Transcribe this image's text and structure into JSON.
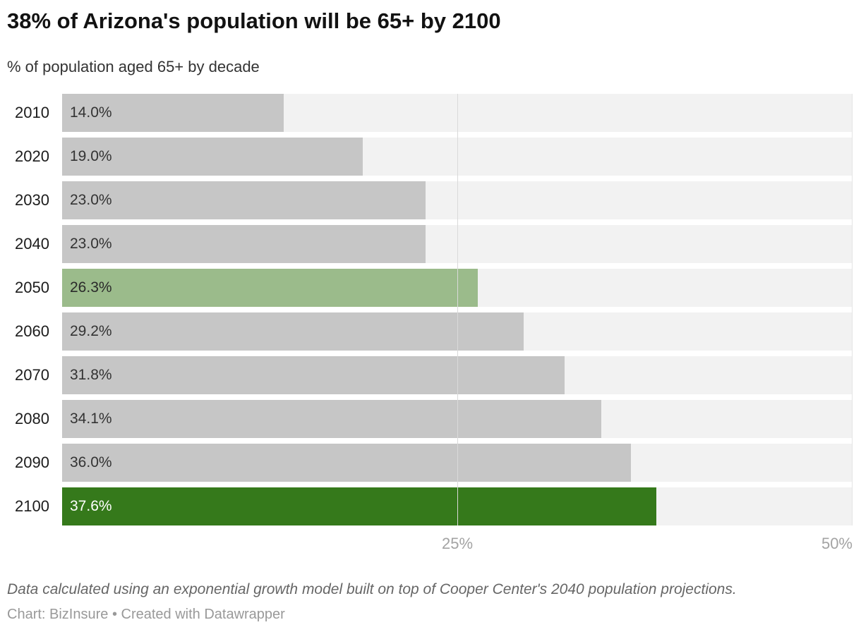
{
  "header": {
    "title": "38% of Arizona's population will be 65+ by 2100",
    "subtitle": "% of population aged 65+ by decade"
  },
  "chart_data": {
    "type": "bar",
    "orientation": "horizontal",
    "title": "38% of Arizona's population will be 65+ by 2100",
    "subtitle": "% of population aged 65+ by decade",
    "categories": [
      "2010",
      "2020",
      "2030",
      "2040",
      "2050",
      "2060",
      "2070",
      "2080",
      "2090",
      "2100"
    ],
    "values": [
      14.0,
      19.0,
      23.0,
      23.0,
      26.3,
      29.2,
      31.8,
      34.1,
      36.0,
      37.6
    ],
    "bar_labels": [
      "14.0%",
      "19.0%",
      "23.0%",
      "23.0%",
      "26.3%",
      "29.2%",
      "31.8%",
      "34.1%",
      "36.0%",
      "37.6%"
    ],
    "bar_colors": [
      "#c6c6c6",
      "#c6c6c6",
      "#c6c6c6",
      "#c6c6c6",
      "#9bbb8b",
      "#c6c6c6",
      "#c6c6c6",
      "#c6c6c6",
      "#c6c6c6",
      "#35791b"
    ],
    "bar_label_colors": [
      "#333333",
      "#333333",
      "#333333",
      "#333333",
      "#2a2a2a",
      "#333333",
      "#333333",
      "#333333",
      "#333333",
      "#ffffff"
    ],
    "xlim": [
      0,
      50
    ],
    "x_ticks": [
      {
        "value": 25,
        "label": "25%"
      },
      {
        "value": 50,
        "label": "50%"
      }
    ],
    "grid": true,
    "legend": "none",
    "colors": {
      "default_bar": "#c6c6c6",
      "highlight_light": "#9bbb8b",
      "highlight_dark": "#35791b",
      "track": "#f2f2f2",
      "gridline_25": "#d9d9d9",
      "gridline_50": "#e4e4e4",
      "tick_text": "#a3a3a3"
    }
  },
  "footer": {
    "note": "Data calculated using an exponential growth model built on top of Cooper Center's 2040 population projections.",
    "byline": "Chart: BizInsure • Created with Datawrapper"
  }
}
